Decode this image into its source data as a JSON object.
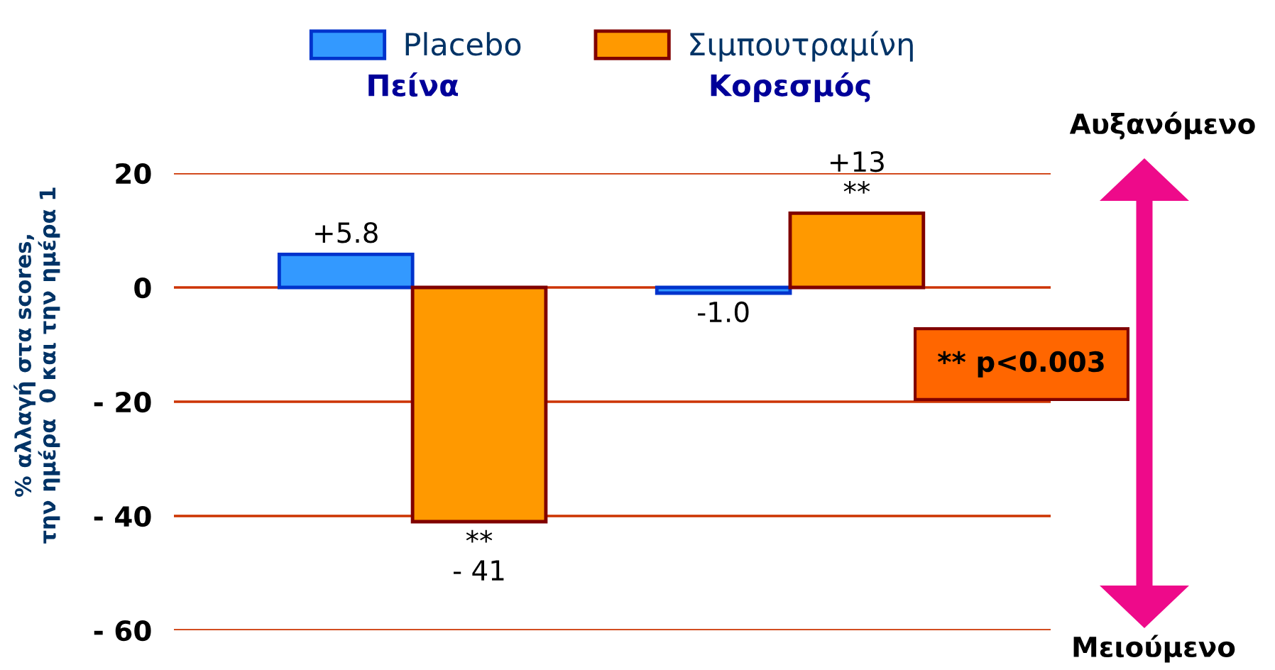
{
  "chart_data": {
    "type": "bar",
    "categories": [
      "Πείνα",
      "Κορεσμός"
    ],
    "series": [
      {
        "name": "Placebo",
        "color": "#3399ff",
        "values": [
          5.8,
          -1.0
        ],
        "value_labels": [
          "+5.8",
          "-1.0"
        ]
      },
      {
        "name": "Σιμπουτραμίνη",
        "color": "#ff9900",
        "values": [
          -41,
          13
        ],
        "value_labels": [
          "**\n- 41",
          "+13\n**"
        ]
      }
    ],
    "ylabel": "% αλλαγή στα scores,\nτην ημέρα  0 και την ημέρα 1",
    "ylim": [
      -60,
      20
    ],
    "yticks": [
      {
        "value": -60,
        "label": "- 60"
      },
      {
        "value": -40,
        "label": "- 40"
      },
      {
        "value": -20,
        "label": "- 20"
      },
      0,
      20
    ],
    "grid": "y",
    "legend": "top",
    "annotations": [
      "** p<0.003",
      "Αυξανόμενο",
      "Μειούμενο"
    ]
  }
}
